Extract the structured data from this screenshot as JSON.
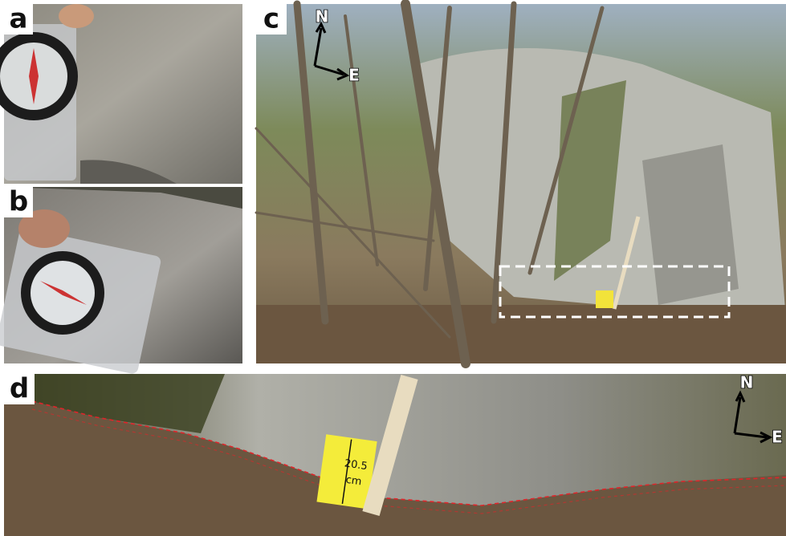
{
  "panels": [
    {
      "label": "a"
    },
    {
      "label": "b"
    },
    {
      "label": "c",
      "compass": {
        "north": "N",
        "east": "E"
      }
    },
    {
      "label": "d",
      "compass": {
        "north": "N",
        "east": "E"
      },
      "scale_card": {
        "lines": [
          "20.5",
          "cm"
        ]
      }
    }
  ]
}
